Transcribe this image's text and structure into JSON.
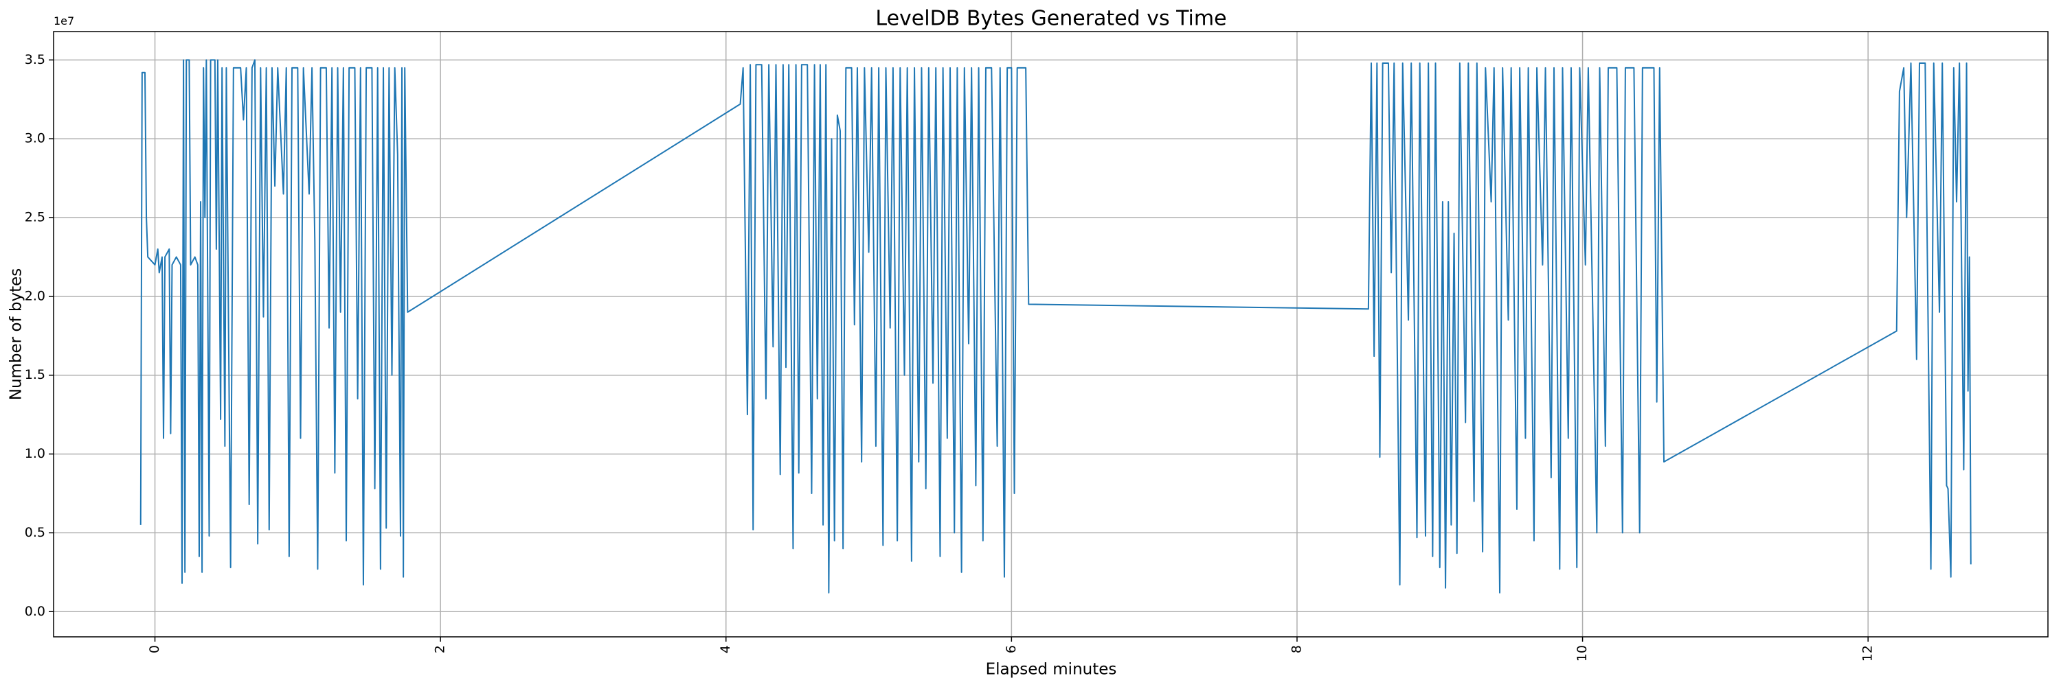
{
  "chart_data": {
    "type": "line",
    "title": "LevelDB Bytes Generated vs Time",
    "x_label": "Elapsed minutes",
    "y_label": "Number of bytes",
    "y_offset_label": "1e7",
    "color": "#1f77b4",
    "grid": true,
    "xlim": [
      -0.71,
      13.26
    ],
    "ylim": [
      -0.16,
      3.68
    ],
    "xticks": [
      0,
      2,
      4,
      6,
      8,
      10,
      12
    ],
    "yticks": [
      {
        "value": 0,
        "label": "0.0"
      },
      0.5,
      {
        "value": 1,
        "label": "1.0"
      },
      1.5,
      {
        "value": 2,
        "label": "2.0"
      },
      2.5,
      {
        "value": 3,
        "label": "3.0"
      },
      3.5
    ],
    "x": [
      -0.1,
      -0.09,
      -0.07,
      -0.06,
      -0.05,
      0,
      0.02,
      0.03,
      0.05,
      0.06,
      0.07,
      0.1,
      0.11,
      0.12,
      0.15,
      0.18,
      0.19,
      0.2,
      0.21,
      0.22,
      0.24,
      0.25,
      0.28,
      0.3,
      0.31,
      0.32,
      0.33,
      0.34,
      0.35,
      0.36,
      0.38,
      0.39,
      0.42,
      0.43,
      0.44,
      0.46,
      0.47,
      0.49,
      0.5,
      0.53,
      0.55,
      0.6,
      0.62,
      0.64,
      0.66,
      0.68,
      0.7,
      0.72,
      0.74,
      0.76,
      0.78,
      0.8,
      0.82,
      0.84,
      0.86,
      0.9,
      0.92,
      0.94,
      0.96,
      1.0,
      1.02,
      1.04,
      1.08,
      1.1,
      1.12,
      1.14,
      1.16,
      1.2,
      1.22,
      1.24,
      1.26,
      1.28,
      1.3,
      1.32,
      1.34,
      1.36,
      1.4,
      1.42,
      1.44,
      1.46,
      1.48,
      1.52,
      1.54,
      1.56,
      1.58,
      1.6,
      1.62,
      1.64,
      1.66,
      1.68,
      1.7,
      1.72,
      1.73,
      1.74,
      1.75,
      1.77,
      4.1,
      4.12,
      4.15,
      4.17,
      4.19,
      4.21,
      4.25,
      4.28,
      4.3,
      4.33,
      4.35,
      4.38,
      4.4,
      4.42,
      4.44,
      4.47,
      4.49,
      4.51,
      4.53,
      4.57,
      4.6,
      4.62,
      4.64,
      4.66,
      4.68,
      4.7,
      4.72,
      4.74,
      4.76,
      4.78,
      4.8,
      4.82,
      4.84,
      4.88,
      4.9,
      4.92,
      4.95,
      4.97,
      5.0,
      5.02,
      5.05,
      5.07,
      5.1,
      5.12,
      5.15,
      5.17,
      5.2,
      5.22,
      5.25,
      5.27,
      5.3,
      5.32,
      5.35,
      5.37,
      5.4,
      5.42,
      5.45,
      5.47,
      5.5,
      5.52,
      5.55,
      5.57,
      5.6,
      5.62,
      5.65,
      5.67,
      5.7,
      5.72,
      5.75,
      5.77,
      5.8,
      5.82,
      5.86,
      5.9,
      5.92,
      5.95,
      5.97,
      6.0,
      6.02,
      6.04,
      6.1,
      6.12,
      8.5,
      8.52,
      8.54,
      8.56,
      8.58,
      8.6,
      8.64,
      8.66,
      8.68,
      8.72,
      8.74,
      8.78,
      8.8,
      8.84,
      8.86,
      8.9,
      8.92,
      8.95,
      8.97,
      9.0,
      9.02,
      9.04,
      9.06,
      9.08,
      9.1,
      9.12,
      9.14,
      9.18,
      9.2,
      9.24,
      9.26,
      9.3,
      9.32,
      9.36,
      9.38,
      9.42,
      9.44,
      9.48,
      9.5,
      9.54,
      9.56,
      9.6,
      9.62,
      9.66,
      9.68,
      9.72,
      9.74,
      9.78,
      9.8,
      9.84,
      9.86,
      9.9,
      9.92,
      9.96,
      9.98,
      10.02,
      10.04,
      10.1,
      10.12,
      10.16,
      10.18,
      10.24,
      10.28,
      10.3,
      10.36,
      10.4,
      10.42,
      10.5,
      10.52,
      10.54,
      10.57,
      12.2,
      12.22,
      12.25,
      12.27,
      12.3,
      12.34,
      12.36,
      12.4,
      12.44,
      12.46,
      12.5,
      12.52,
      12.55,
      12.56,
      12.58,
      12.6,
      12.62,
      12.64,
      12.67,
      12.69,
      12.7,
      12.71,
      12.72
    ],
    "values": [
      0.55,
      3.42,
      3.42,
      2.5,
      2.25,
      2.2,
      2.3,
      2.15,
      2.25,
      1.1,
      2.25,
      2.3,
      1.13,
      2.2,
      2.25,
      2.2,
      0.18,
      3.5,
      0.25,
      3.5,
      3.5,
      2.2,
      2.25,
      2.2,
      0.35,
      2.6,
      0.25,
      3.45,
      2.5,
      3.5,
      0.48,
      3.5,
      3.5,
      2.3,
      3.5,
      1.22,
      3.45,
      1.05,
      3.45,
      0.28,
      3.45,
      3.45,
      3.12,
      3.45,
      0.68,
      3.45,
      3.5,
      0.43,
      3.45,
      1.87,
      3.45,
      0.52,
      3.45,
      2.7,
      3.45,
      2.65,
      3.45,
      0.35,
      3.45,
      3.45,
      1.1,
      3.45,
      2.65,
      3.45,
      2.35,
      0.27,
      3.45,
      3.45,
      1.8,
      3.45,
      0.88,
      3.45,
      1.9,
      3.45,
      0.45,
      3.45,
      3.45,
      1.35,
      3.45,
      0.17,
      3.45,
      3.45,
      0.78,
      3.45,
      0.27,
      3.45,
      0.53,
      3.45,
      1.5,
      3.45,
      2.9,
      0.48,
      3.45,
      0.22,
      3.45,
      1.9,
      3.22,
      3.45,
      1.25,
      3.47,
      0.52,
      3.47,
      3.47,
      1.35,
      3.47,
      1.68,
      3.47,
      0.87,
      3.47,
      1.55,
      3.47,
      0.4,
      3.47,
      0.88,
      3.47,
      3.47,
      0.75,
      3.47,
      1.35,
      3.47,
      0.55,
      3.47,
      0.12,
      3.0,
      0.45,
      3.15,
      3.05,
      0.4,
      3.45,
      3.45,
      1.82,
      3.45,
      0.95,
      3.45,
      2.28,
      3.45,
      1.05,
      3.45,
      0.42,
      3.45,
      1.8,
      3.45,
      0.45,
      3.45,
      1.5,
      3.45,
      0.32,
      3.45,
      0.95,
      3.45,
      0.78,
      3.45,
      1.45,
      3.45,
      0.35,
      3.45,
      1.1,
      3.45,
      0.5,
      3.45,
      0.25,
      3.45,
      1.7,
      3.45,
      0.8,
      3.45,
      0.45,
      3.45,
      3.45,
      1.05,
      3.45,
      0.22,
      3.45,
      3.45,
      0.75,
      3.45,
      3.45,
      1.95,
      1.92,
      3.48,
      1.62,
      3.48,
      0.98,
      3.48,
      3.48,
      2.15,
      3.48,
      0.17,
      3.48,
      1.85,
      3.48,
      0.47,
      3.48,
      0.48,
      3.48,
      0.35,
      3.48,
      0.28,
      2.6,
      0.15,
      2.6,
      0.55,
      2.4,
      0.37,
      3.48,
      1.2,
      3.48,
      0.7,
      3.48,
      0.38,
      3.45,
      2.6,
      3.45,
      0.12,
      3.45,
      1.85,
      3.45,
      0.65,
      3.45,
      1.1,
      3.45,
      0.45,
      3.45,
      2.2,
      3.45,
      0.85,
      3.45,
      0.27,
      3.45,
      1.1,
      3.45,
      0.28,
      3.45,
      2.2,
      3.45,
      0.5,
      3.45,
      1.05,
      3.45,
      3.45,
      0.5,
      3.45,
      3.45,
      0.5,
      3.45,
      3.45,
      1.33,
      3.45,
      0.95,
      1.78,
      3.3,
      3.45,
      2.5,
      3.48,
      1.6,
      3.48,
      3.48,
      0.27,
      3.48,
      1.9,
      3.48,
      0.8,
      0.78,
      0.22,
      3.45,
      2.6,
      3.48,
      0.9,
      3.48,
      1.4,
      2.25,
      0.3
    ]
  }
}
